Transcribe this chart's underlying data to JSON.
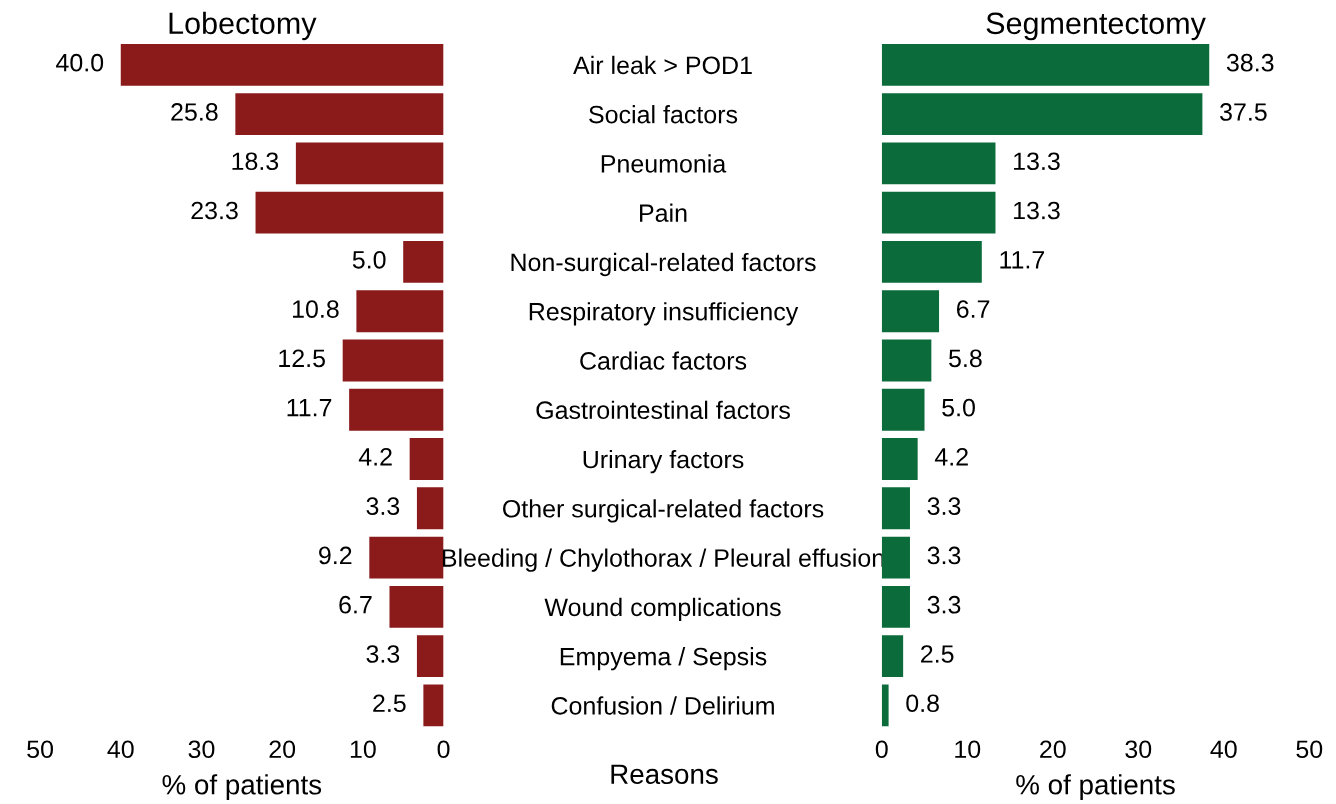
{
  "chart_data": [
    {
      "type": "bar",
      "orientation": "horizontal",
      "title": "Lobectomy",
      "xlabel": "% of patients",
      "annotations": [
        "Reasons"
      ],
      "categories": [
        "Air leak > POD1",
        "Social factors",
        "Pneumonia",
        "Pain",
        "Non-surgical-related factors",
        "Respiratory insufficiency",
        "Cardiac factors",
        "Gastrointestinal factors",
        "Urinary factors",
        "Other surgical-related factors",
        "Bleeding / Chylothorax / Pleural effusion",
        "Wound complications",
        "Empyema / Sepsis",
        "Confusion / Delirium"
      ],
      "values": [
        40.0,
        25.8,
        18.3,
        23.3,
        5.0,
        10.8,
        12.5,
        11.7,
        4.2,
        3.3,
        9.2,
        6.7,
        3.3,
        2.5
      ],
      "value_labels": [
        "40.0",
        "25.8",
        "18.3",
        "23.3",
        "5.0",
        "10.8",
        "12.5",
        "11.7",
        "4.2",
        "3.3",
        "9.2",
        "6.7",
        "3.3",
        "2.5"
      ],
      "color": "#8b1a1a",
      "xlim": [
        50,
        0
      ],
      "xticks": [
        50,
        40,
        30,
        20,
        10,
        0
      ],
      "grid": false,
      "legend": false
    },
    {
      "type": "bar",
      "orientation": "horizontal",
      "title": "Segmentectomy",
      "xlabel": "% of patients",
      "categories": [
        null,
        null,
        null,
        null,
        null,
        null,
        null,
        null,
        null,
        null,
        null,
        null,
        null,
        null
      ],
      "values": [
        38.3,
        37.5,
        13.3,
        13.3,
        11.7,
        6.7,
        5.8,
        5.0,
        4.2,
        3.3,
        3.3,
        3.3,
        2.5,
        0.8
      ],
      "value_labels": [
        "38.3",
        "37.5",
        "13.3",
        "13.3",
        "11.7",
        "6.7",
        "5.8",
        "5.0",
        "4.2",
        "3.3",
        "3.3",
        "3.3",
        "2.5",
        "0.8"
      ],
      "color": "#0b6b3a",
      "xlim": [
        0,
        50
      ],
      "xticks": [
        0,
        10,
        20,
        30,
        40,
        50
      ],
      "grid": false,
      "legend": false,
      "tick_labels": "x"
    }
  ]
}
